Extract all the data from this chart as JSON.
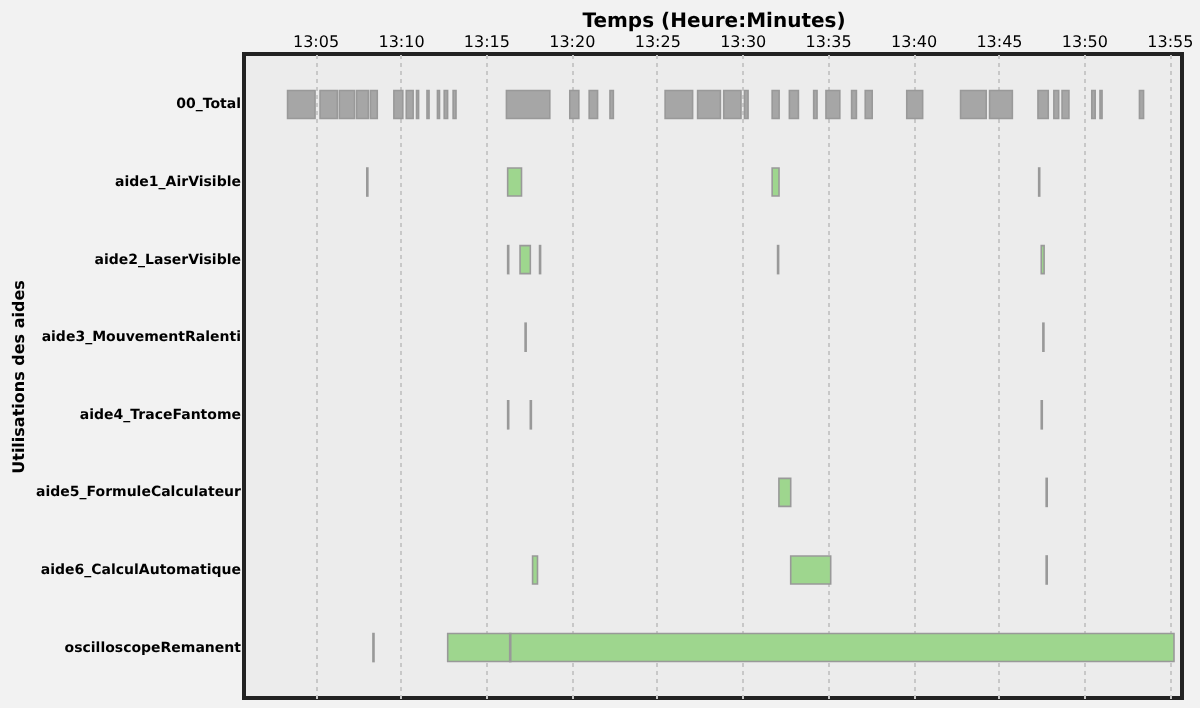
{
  "chart_data": {
    "type": "bar",
    "orientation": "horizontal",
    "xlabel": "Temps (Heure:Minutes)",
    "ylabel": "Utilisations des aides",
    "categories": [
      "00_Total",
      "aide1_AirVisible",
      "aide2_LaserVisible",
      "aide3_MouvementRalenti",
      "aide4_TraceFantome",
      "aide5_FormuleCalculateur",
      "aide6_CalculAutomatique",
      "oscilloscopeRemanent"
    ],
    "xlim": [
      13.014,
      13.929
    ],
    "xticks": [
      {
        "value": 13.0833,
        "label": "13:05"
      },
      {
        "value": 13.1667,
        "label": "13:10"
      },
      {
        "value": 13.25,
        "label": "13:15"
      },
      {
        "value": 13.3333,
        "label": "13:20"
      },
      {
        "value": 13.4167,
        "label": "13:25"
      },
      {
        "value": 13.5,
        "label": "13:30"
      },
      {
        "value": 13.5833,
        "label": "13:35"
      },
      {
        "value": 13.6667,
        "label": "13:40"
      },
      {
        "value": 13.75,
        "label": "13:45"
      },
      {
        "value": 13.8333,
        "label": "13:50"
      },
      {
        "value": 13.9167,
        "label": "13:55"
      }
    ],
    "grid": "x",
    "series": [
      {
        "base": [
          13.0565,
          13.1338,
          13.2712,
          13.2882,
          13.2712,
          13.5358,
          13.2955,
          13.1398
        ],
        "values": [
          0.0268,
          0.001,
          0.001,
          0.001,
          0.001,
          0.0115,
          0.0048,
          0.001
        ],
        "colors": [
          "#a6a6a6",
          "#9ed68e",
          "#9ed68e",
          "#9ed68e",
          "#9ed68e",
          "#9ed68e",
          "#9ed68e",
          "#9ed68e"
        ]
      },
      {
        "base": [
          13.0882,
          13.2712,
          13.2833,
          13.7933,
          13.2933,
          13.7965,
          13.5473,
          13.2127
        ],
        "values": [
          0.0168,
          0.0135,
          0.01,
          0.001,
          0.001,
          0.001,
          0.039,
          0.7085
        ],
        "colors": [
          "#a6a6a6",
          "#9ed68e",
          "#9ed68e",
          "#9ed68e",
          "#9ed68e",
          "#9ed68e",
          "#9ed68e",
          "#9ed68e"
        ]
      },
      {
        "base": [
          13.107,
          13.5292,
          13.3023,
          null,
          13.7917,
          null,
          13.7965,
          13.2732
        ],
        "values": [
          0.0148,
          0.0067,
          0.001,
          null,
          0.001,
          null,
          0.001,
          0.001
        ],
        "colors": [
          "#a6a6a6",
          "#9ed68e",
          "#9ed68e",
          null,
          "#9ed68e",
          null,
          "#9ed68e",
          "#9ed68e"
        ]
      },
      {
        "base": [
          13.1238,
          13.7892,
          13.5345,
          null,
          null,
          null,
          null,
          null
        ],
        "values": [
          0.0115,
          0.001,
          0.001,
          null,
          null,
          null,
          null,
          null
        ],
        "colors": [
          "#a6a6a6",
          "#9ed68e",
          "#9ed68e",
          null,
          null,
          null,
          null,
          null
        ]
      },
      {
        "base": [
          13.1373,
          null,
          13.7917,
          null,
          null,
          null,
          null,
          null
        ],
        "values": [
          0.0067,
          null,
          0.0028,
          null,
          null,
          null,
          null,
          null
        ],
        "colors": [
          "#a6a6a6",
          null,
          "#9ed68e",
          null,
          null,
          null,
          null,
          null
        ]
      },
      {
        "color": "#a6a6a6",
        "base": [
          13.1602,
          null,
          null,
          null,
          null,
          null,
          null,
          null
        ],
        "values": [
          0.0087,
          null,
          null,
          null,
          null,
          null,
          null,
          null
        ]
      },
      {
        "color": "#a6a6a6",
        "base": [
          13.1723,
          null,
          null,
          null,
          null,
          null,
          null,
          null
        ],
        "values": [
          0.0067,
          null,
          null,
          null,
          null,
          null,
          null,
          null
        ]
      },
      {
        "color": "#a6a6a6",
        "base": [
          13.1823,
          null,
          null,
          null,
          null,
          null,
          null,
          null
        ],
        "values": [
          0.002,
          null,
          null,
          null,
          null,
          null,
          null,
          null
        ]
      },
      {
        "color": "#a6a6a6",
        "base": [
          13.1925,
          null,
          null,
          null,
          null,
          null,
          null,
          null
        ],
        "values": [
          0.002,
          null,
          null,
          null,
          null,
          null,
          null,
          null
        ]
      },
      {
        "color": "#a6a6a6",
        "base": [
          13.2027,
          null,
          null,
          null,
          null,
          null,
          null,
          null
        ],
        "values": [
          0.002,
          null,
          null,
          null,
          null,
          null,
          null,
          null
        ]
      },
      {
        "color": "#a6a6a6",
        "base": [
          13.2093,
          null,
          null,
          null,
          null,
          null,
          null,
          null
        ],
        "values": [
          0.0033,
          null,
          null,
          null,
          null,
          null,
          null,
          null
        ]
      },
      {
        "color": "#a6a6a6",
        "base": [
          13.218,
          null,
          null,
          null,
          null,
          null,
          null,
          null
        ],
        "values": [
          0.0028,
          null,
          null,
          null,
          null,
          null,
          null,
          null
        ]
      },
      {
        "color": "#a6a6a6",
        "base": [
          13.27,
          null,
          null,
          null,
          null,
          null,
          null,
          null
        ],
        "values": [
          0.0423,
          null,
          null,
          null,
          null,
          null,
          null,
          null
        ]
      },
      {
        "color": "#a6a6a6",
        "base": [
          13.3318,
          null,
          null,
          null,
          null,
          null,
          null,
          null
        ],
        "values": [
          0.0088,
          null,
          null,
          null,
          null,
          null,
          null,
          null
        ]
      },
      {
        "color": "#a6a6a6",
        "base": [
          13.3507,
          null,
          null,
          null,
          null,
          null,
          null,
          null
        ],
        "values": [
          0.0082,
          null,
          null,
          null,
          null,
          null,
          null,
          null
        ]
      },
      {
        "color": "#a6a6a6",
        "base": [
          13.371,
          null,
          null,
          null,
          null,
          null,
          null,
          null
        ],
        "values": [
          0.0033,
          null,
          null,
          null,
          null,
          null,
          null,
          null
        ]
      },
      {
        "color": "#a6a6a6",
        "base": [
          13.4248,
          null,
          null,
          null,
          null,
          null,
          null,
          null
        ],
        "values": [
          0.0268,
          null,
          null,
          null,
          null,
          null,
          null,
          null
        ]
      },
      {
        "color": "#a6a6a6",
        "base": [
          13.4565,
          null,
          null,
          null,
          null,
          null,
          null,
          null
        ],
        "values": [
          0.0222,
          null,
          null,
          null,
          null,
          null,
          null,
          null
        ]
      },
      {
        "color": "#a6a6a6",
        "base": [
          13.482,
          null,
          null,
          null,
          null,
          null,
          null,
          null
        ],
        "values": [
          0.0168,
          null,
          null,
          null,
          null,
          null,
          null,
          null
        ]
      },
      {
        "color": "#a6a6a6",
        "base": [
          13.5022,
          null,
          null,
          null,
          null,
          null,
          null,
          null
        ],
        "values": [
          0.0035,
          null,
          null,
          null,
          null,
          null,
          null,
          null
        ]
      },
      {
        "color": "#a6a6a6",
        "base": [
          13.5292,
          null,
          null,
          null,
          null,
          null,
          null,
          null
        ],
        "values": [
          0.0068,
          null,
          null,
          null,
          null,
          null,
          null,
          null
        ]
      },
      {
        "color": "#a6a6a6",
        "base": [
          13.546,
          null,
          null,
          null,
          null,
          null,
          null,
          null
        ],
        "values": [
          0.0088,
          null,
          null,
          null,
          null,
          null,
          null,
          null
        ]
      },
      {
        "color": "#a6a6a6",
        "base": [
          13.5697,
          null,
          null,
          null,
          null,
          null,
          null,
          null
        ],
        "values": [
          0.0033,
          null,
          null,
          null,
          null,
          null,
          null,
          null
        ]
      },
      {
        "color": "#a6a6a6",
        "base": [
          13.5817,
          null,
          null,
          null,
          null,
          null,
          null,
          null
        ],
        "values": [
          0.0135,
          null,
          null,
          null,
          null,
          null,
          null,
          null
        ]
      },
      {
        "color": "#a6a6a6",
        "base": [
          13.6067,
          null,
          null,
          null,
          null,
          null,
          null,
          null
        ],
        "values": [
          0.0047,
          null,
          null,
          null,
          null,
          null,
          null,
          null
        ]
      },
      {
        "color": "#a6a6a6",
        "base": [
          13.62,
          null,
          null,
          null,
          null,
          null,
          null,
          null
        ],
        "values": [
          0.0068,
          null,
          null,
          null,
          null,
          null,
          null,
          null
        ]
      },
      {
        "color": "#a6a6a6",
        "base": [
          13.6605,
          null,
          null,
          null,
          null,
          null,
          null,
          null
        ],
        "values": [
          0.0155,
          null,
          null,
          null,
          null,
          null,
          null,
          null
        ]
      },
      {
        "color": "#a6a6a6",
        "base": [
          13.713,
          null,
          null,
          null,
          null,
          null,
          null,
          null
        ],
        "values": [
          0.025,
          null,
          null,
          null,
          null,
          null,
          null,
          null
        ]
      },
      {
        "color": "#a6a6a6",
        "base": [
          13.7413,
          null,
          null,
          null,
          null,
          null,
          null,
          null
        ],
        "values": [
          0.0222,
          null,
          null,
          null,
          null,
          null,
          null,
          null
        ]
      },
      {
        "color": "#a6a6a6",
        "base": [
          13.7885,
          null,
          null,
          null,
          null,
          null,
          null,
          null
        ],
        "values": [
          0.01,
          null,
          null,
          null,
          null,
          null,
          null,
          null
        ]
      },
      {
        "color": "#a6a6a6",
        "base": [
          13.804,
          null,
          null,
          null,
          null,
          null,
          null,
          null
        ],
        "values": [
          0.0047,
          null,
          null,
          null,
          null,
          null,
          null,
          null
        ]
      },
      {
        "color": "#a6a6a6",
        "base": [
          13.812,
          null,
          null,
          null,
          null,
          null,
          null,
          null
        ],
        "values": [
          0.0067,
          null,
          null,
          null,
          null,
          null,
          null,
          null
        ]
      },
      {
        "color": "#a6a6a6",
        "base": [
          13.841,
          null,
          null,
          null,
          null,
          null,
          null,
          null
        ],
        "values": [
          0.0033,
          null,
          null,
          null,
          null,
          null,
          null,
          null
        ]
      },
      {
        "color": "#a6a6a6",
        "base": [
          13.849,
          null,
          null,
          null,
          null,
          null,
          null,
          null
        ],
        "values": [
          0.002,
          null,
          null,
          null,
          null,
          null,
          null,
          null
        ]
      },
      {
        "color": "#a6a6a6",
        "base": [
          13.8875,
          null,
          null,
          null,
          null,
          null,
          null,
          null
        ],
        "values": [
          0.004,
          null,
          null,
          null,
          null,
          null,
          null,
          null
        ]
      }
    ]
  }
}
